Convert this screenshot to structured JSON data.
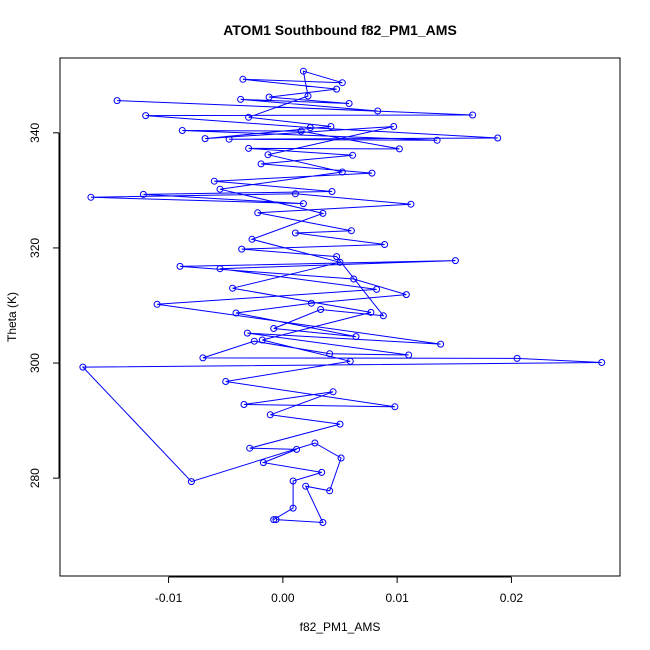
{
  "chart_data": {
    "type": "line",
    "title": "ATOM1 Southbound f82_PM1_AMS",
    "xlabel": "f82_PM1_AMS",
    "ylabel": "Theta (K)",
    "xlim": [
      -0.0195,
      0.0295
    ],
    "ylim": [
      263,
      353
    ],
    "x_ticks": [
      -0.01,
      0.0,
      0.01,
      0.02
    ],
    "x_tick_labels": [
      "-0.01",
      "0.00",
      "0.01",
      "0.02"
    ],
    "y_ticks": [
      280,
      300,
      320,
      340
    ],
    "y_tick_labels": [
      "280",
      "300",
      "320",
      "340"
    ],
    "grid": false,
    "legend": "none",
    "series": [
      {
        "color": "#0000ff",
        "marker": "open-circle",
        "line": "solid",
        "points": [
          [
            -0.0006,
            272.8
          ],
          [
            0.0035,
            272.3
          ],
          [
            0.002,
            278.6
          ],
          [
            0.0041,
            277.8
          ],
          [
            0.0051,
            283.5
          ],
          [
            0.0028,
            286.1
          ],
          [
            -0.008,
            279.4
          ],
          [
            -0.0175,
            299.3
          ],
          [
            0.0279,
            300.1
          ],
          [
            0.0205,
            300.8
          ],
          [
            -0.007,
            300.9
          ],
          [
            -0.0025,
            303.8
          ],
          [
            0.0041,
            301.6
          ],
          [
            0.011,
            301.4
          ],
          [
            -0.0031,
            305.2
          ],
          [
            0.0138,
            303.3
          ],
          [
            -0.011,
            310.2
          ],
          [
            0.0082,
            312.8
          ],
          [
            -0.0055,
            316.4
          ],
          [
            0.0151,
            317.8
          ],
          [
            -0.009,
            316.8
          ],
          [
            0.0062,
            314.6
          ],
          [
            0.0108,
            311.9
          ],
          [
            0.0025,
            310.4
          ],
          [
            -0.0041,
            308.7
          ],
          [
            0.0064,
            304.6
          ],
          [
            -0.0008,
            306.0
          ],
          [
            0.0033,
            309.3
          ],
          [
            0.0088,
            308.2
          ],
          [
            0.0047,
            318.5
          ],
          [
            -0.0036,
            319.8
          ],
          [
            0.0089,
            320.6
          ],
          [
            0.0011,
            322.6
          ],
          [
            0.006,
            323.0
          ],
          [
            -0.0022,
            326.1
          ],
          [
            0.0112,
            327.6
          ],
          [
            0.0011,
            329.4
          ],
          [
            -0.0168,
            328.8
          ],
          [
            0.0018,
            327.7
          ],
          [
            -0.0122,
            329.3
          ],
          [
            0.0043,
            329.8
          ],
          [
            -0.006,
            331.6
          ],
          [
            0.0078,
            333.0
          ],
          [
            -0.0019,
            334.6
          ],
          [
            0.0061,
            336.1
          ],
          [
            -0.003,
            337.3
          ],
          [
            0.0102,
            337.2
          ],
          [
            0.0016,
            340.3
          ],
          [
            -0.0088,
            340.4
          ],
          [
            0.0135,
            338.7
          ],
          [
            -0.0047,
            338.9
          ],
          [
            0.0188,
            339.1
          ],
          [
            0.0024,
            340.9
          ],
          [
            -0.012,
            343.0
          ],
          [
            0.0166,
            343.1
          ],
          [
            -0.0145,
            345.6
          ],
          [
            0.0083,
            343.8
          ],
          [
            -0.0037,
            345.8
          ],
          [
            0.0058,
            345.1
          ],
          [
            -0.0012,
            346.2
          ],
          [
            0.0047,
            347.6
          ],
          [
            -0.0035,
            349.3
          ],
          [
            0.0052,
            348.7
          ],
          [
            0.0018,
            350.7
          ],
          [
            0.0022,
            346.4
          ],
          [
            -0.003,
            342.7
          ],
          [
            0.0042,
            341.1
          ],
          [
            -0.0068,
            339.0
          ],
          [
            0.0097,
            341.1
          ],
          [
            -0.0013,
            336.2
          ],
          [
            0.0052,
            333.2
          ],
          [
            -0.0055,
            330.2
          ],
          [
            0.0035,
            326.0
          ],
          [
            -0.0027,
            321.5
          ],
          [
            0.005,
            317.5
          ],
          [
            -0.0044,
            313.0
          ],
          [
            0.0077,
            308.8
          ],
          [
            -0.0018,
            304.0
          ],
          [
            0.0059,
            300.3
          ],
          [
            -0.005,
            296.8
          ],
          [
            0.0098,
            292.4
          ],
          [
            -0.0034,
            292.8
          ],
          [
            0.0044,
            295.0
          ],
          [
            -0.0011,
            291.0
          ],
          [
            0.005,
            289.4
          ],
          [
            -0.0029,
            285.2
          ],
          [
            0.0012,
            285.0
          ],
          [
            -0.0017,
            282.7
          ],
          [
            0.0034,
            281.0
          ],
          [
            0.0009,
            279.5
          ],
          [
            0.0009,
            274.8
          ],
          [
            -0.0008,
            272.8
          ]
        ]
      }
    ]
  }
}
